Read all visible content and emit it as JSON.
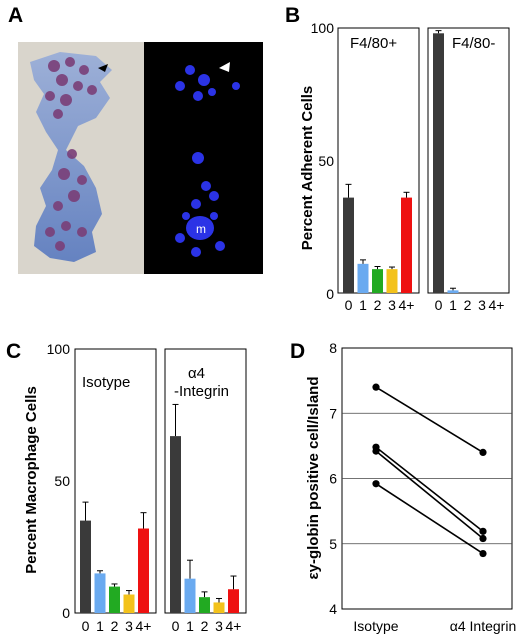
{
  "panels": {
    "a": "A",
    "b": "B",
    "c": "C",
    "d": "D"
  },
  "micrograph": {
    "macrophage_label": "m"
  },
  "chart_data": [
    {
      "panel": "B",
      "type": "bar",
      "ylabel": "Percent Adherent Cells",
      "yticks": [
        0,
        50,
        100
      ],
      "ylim": [
        0,
        100
      ],
      "categories": [
        "0",
        "1",
        "2",
        "3",
        "4+"
      ],
      "colors": [
        "#3a3a3a",
        "#6aaaf0",
        "#22aa22",
        "#f3c21b",
        "#ee1111"
      ],
      "subpanels": [
        {
          "label": "F4/80+",
          "values": [
            36,
            11,
            9,
            9,
            36
          ],
          "errors": [
            5,
            1.5,
            1,
            0.8,
            2
          ]
        },
        {
          "label": "F4/80-",
          "values": [
            98,
            1,
            0,
            0,
            0
          ],
          "errors": [
            1,
            0.8,
            0,
            0,
            0
          ]
        }
      ]
    },
    {
      "panel": "C",
      "type": "bar",
      "ylabel": "Percent Macrophage Cells",
      "yticks": [
        0,
        50,
        100
      ],
      "ylim": [
        0,
        100
      ],
      "categories": [
        "0",
        "1",
        "2",
        "3",
        "4+"
      ],
      "colors": [
        "#3a3a3a",
        "#6aaaf0",
        "#22aa22",
        "#f3c21b",
        "#ee1111"
      ],
      "subpanels": [
        {
          "label_lines": [
            "Isotype"
          ],
          "values": [
            35,
            15,
            10,
            7,
            32
          ],
          "errors": [
            7,
            1,
            1,
            1.5,
            6
          ]
        },
        {
          "label_lines": [
            "α4",
            "-Integrin"
          ],
          "values": [
            67,
            13,
            6,
            4,
            9
          ],
          "errors": [
            12,
            7,
            2,
            1.5,
            5
          ]
        }
      ]
    },
    {
      "panel": "D",
      "type": "line",
      "ylabel": "εy-globin positive cell/Island",
      "ylim": [
        4,
        8
      ],
      "yticks": [
        4,
        5,
        6,
        7,
        8
      ],
      "grid": true,
      "categories": [
        "Isotype",
        "α4 Integrin"
      ],
      "lines": [
        [
          7.4,
          6.4
        ],
        [
          6.48,
          5.19
        ],
        [
          6.42,
          5.08
        ],
        [
          5.92,
          4.85
        ]
      ]
    }
  ]
}
